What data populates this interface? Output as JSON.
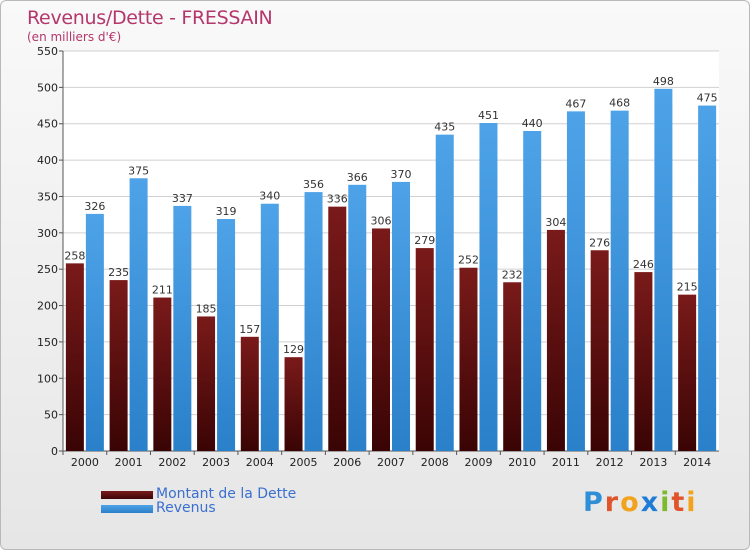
{
  "header": {
    "title": "Revenus/Dette - FRESSAIN",
    "subtitle": "(en milliers d'€)"
  },
  "colors": {
    "dette": "#7a1a1a",
    "revenus": "#4ea3e8"
  },
  "chart_data": {
    "type": "bar",
    "title": "Revenus/Dette - FRESSAIN",
    "subtitle": "(en milliers d'€)",
    "categories": [
      "2000",
      "2001",
      "2002",
      "2003",
      "2004",
      "2005",
      "2006",
      "2007",
      "2008",
      "2009",
      "2010",
      "2011",
      "2012",
      "2013",
      "2014"
    ],
    "series": [
      {
        "name": "Montant de la Dette",
        "values": [
          258,
          235,
          211,
          185,
          157,
          129,
          336,
          306,
          279,
          252,
          232,
          304,
          276,
          246,
          215
        ]
      },
      {
        "name": "Revenus",
        "values": [
          326,
          375,
          337,
          319,
          340,
          356,
          366,
          370,
          435,
          451,
          440,
          467,
          468,
          498,
          475
        ]
      }
    ],
    "ylim": [
      0,
      550
    ],
    "yticks": [
      0,
      50,
      100,
      150,
      200,
      250,
      300,
      350,
      400,
      450,
      500,
      550
    ],
    "grid": true,
    "legend": "bottom-left"
  },
  "legend": {
    "items": [
      {
        "label": "Montant de la Dette"
      },
      {
        "label": "Revenus"
      }
    ]
  },
  "logo": {
    "letters": [
      "P",
      "r",
      "o",
      "x",
      "i",
      "t",
      "i"
    ],
    "colors": [
      "#2e8fd8",
      "#e0532b",
      "#f3a21b",
      "#1f7bd8",
      "#7dbb2c",
      "#e0532b",
      "#f3a21b"
    ]
  }
}
